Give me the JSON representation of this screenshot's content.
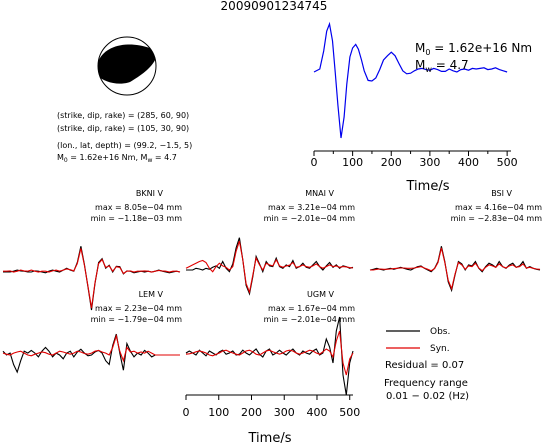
{
  "title": "20090901234745",
  "source_params": {
    "line1": "(strike, dip, rake) = (285, 60, 90)",
    "line2": "(strike, dip, rake) = (105, 30, 90)",
    "line3": "(lon., lat, depth) = (99.2, −1.5, 5)",
    "line4": "M₀ = 1.62e+16 Nm, M_w = 4.7"
  },
  "colors": {
    "obs": "#000000",
    "syn": "#e00000",
    "stf": "#0000ee"
  },
  "chart_data": [
    {
      "type": "line",
      "name": "source-time-function",
      "annotation_m0": "M₀ = 1.62e+16 Nm",
      "annotation_mw": "M_w = 4.7",
      "xlabel": "Time/s",
      "xlim": [
        0,
        510
      ],
      "xticks": [
        0,
        50,
        100,
        150,
        200,
        250,
        300,
        350,
        400,
        450,
        500
      ],
      "x": [
        0,
        15,
        25,
        33,
        40,
        48,
        55,
        62,
        70,
        78,
        85,
        93,
        100,
        108,
        115,
        123,
        130,
        140,
        150,
        160,
        170,
        180,
        190,
        200,
        210,
        220,
        230,
        240,
        250,
        260,
        270,
        280,
        290,
        300,
        310,
        320,
        330,
        340,
        350,
        360,
        370,
        380,
        390,
        400,
        410,
        420,
        430,
        440,
        450,
        460,
        470,
        480,
        490,
        500
      ],
      "y": [
        0.2,
        0.25,
        0.55,
        0.88,
        1.0,
        0.72,
        0.2,
        -0.35,
        -0.9,
        -0.55,
        0.0,
        0.45,
        0.6,
        0.66,
        0.58,
        0.4,
        0.22,
        0.06,
        0.05,
        0.1,
        0.24,
        0.4,
        0.47,
        0.53,
        0.47,
        0.34,
        0.22,
        0.17,
        0.18,
        0.22,
        0.25,
        0.26,
        0.24,
        0.23,
        0.26,
        0.24,
        0.21,
        0.21,
        0.25,
        0.22,
        0.2,
        0.24,
        0.25,
        0.23,
        0.26,
        0.25,
        0.26,
        0.27,
        0.24,
        0.25,
        0.27,
        0.24,
        0.22,
        0.2
      ]
    },
    {
      "type": "line",
      "name": "waveforms",
      "xlabel": "Time/s",
      "xlim": [
        0,
        510
      ],
      "xticks": [
        0,
        100,
        200,
        300,
        400,
        500
      ],
      "legend": {
        "obs": "Obs.",
        "syn": "Syn.",
        "residual": "Residual = 0.07",
        "freq_title": "Frequency range",
        "freq_value": "0.01 − 0.02 (Hz)"
      },
      "stations": [
        {
          "label": "BKNI V",
          "max": "max = 8.05e−04 mm",
          "min": "min = −1.18e−03 mm",
          "obs": [
            0,
            0,
            0,
            0.02,
            0.05,
            0.03,
            0.02,
            0,
            0,
            0.03,
            0.02,
            0,
            -0.02,
            0.02,
            0.05,
            0.02,
            0,
            0.05,
            0.1,
            0.05,
            0.02,
            0.25,
            0.68,
            0.2,
            -0.4,
            -1.0,
            -0.3,
            0.25,
            0.35,
            0.1,
            0.18,
            0.0,
            0.15,
            0.14,
            -0.05,
            0.03,
            0.02,
            -0.02,
            0,
            0.02,
            0,
            0.02,
            0,
            0.02,
            0.05,
            0.02,
            0,
            -0.02,
            0,
            0.02,
            0
          ],
          "syn": [
            0.02,
            0.02,
            0.03,
            0.0,
            0.02,
            0.05,
            0.03,
            0.02,
            0.05,
            0.02,
            0,
            0.02,
            0.02,
            0.0,
            0.03,
            0.05,
            0.02,
            0.05,
            0.08,
            0.06,
            0.03,
            0.22,
            0.62,
            0.18,
            -0.38,
            -0.95,
            -0.28,
            0.22,
            0.33,
            0.12,
            0.16,
            0.02,
            0.14,
            0.12,
            -0.04,
            0.02,
            0.03,
            0,
            0.02,
            0.02,
            0.03,
            0.02,
            0.0,
            0.02,
            0.04,
            0.03,
            0.02,
            0,
            0.02,
            0.02,
            0
          ]
        },
        {
          "label": "MNAI V",
          "max": "max = 3.21e−04 mm",
          "min": "min = −2.01e−04 mm",
          "obs": [
            0,
            0,
            0,
            0.05,
            0.03,
            0,
            0.05,
            0.02,
            0.08,
            0.12,
            0.05,
            0.25,
            0.05,
            -0.05,
            0.18,
            0.65,
            0.95,
            0.3,
            -0.45,
            -0.7,
            -0.2,
            0.4,
            0.18,
            -0.05,
            0.25,
            0.12,
            0.1,
            0.35,
            0.1,
            0.05,
            0.15,
            0.1,
            0.28,
            0.05,
            0.1,
            0.2,
            0.08,
            0.05,
            0.15,
            0.25,
            0.1,
            0.0,
            0.12,
            0.22,
            0.08,
            0.15,
            0.05,
            0.12,
            0.1,
            0.05,
            0.08
          ],
          "syn": [
            0.05,
            0.1,
            0.15,
            0.2,
            0.25,
            0.28,
            0.22,
            0.05,
            -0.05,
            0.1,
            0.2,
            0.12,
            0.08,
            0.0,
            0.1,
            0.55,
            0.85,
            0.3,
            -0.4,
            -0.65,
            -0.15,
            0.35,
            0.15,
            0,
            0.2,
            0.15,
            0.12,
            0.3,
            0.12,
            0.08,
            0.12,
            0.14,
            0.22,
            0.08,
            0.1,
            0.15,
            0.1,
            0.08,
            0.12,
            0.18,
            0.1,
            0.05,
            0.1,
            0.15,
            0.1,
            0.12,
            0.08,
            0.1,
            0.09,
            0.07,
            0.06
          ]
        },
        {
          "label": "BSI V",
          "max": "max = 4.16e−04 mm",
          "min": "min = −2.83e−04 mm",
          "obs": [
            0,
            0.02,
            0.05,
            0.02,
            0,
            0.03,
            0.05,
            0.02,
            0.05,
            0.08,
            0.05,
            0.02,
            0.0,
            0.05,
            0.1,
            0.12,
            0.05,
            0.0,
            -0.05,
            0.05,
            0.25,
            0.7,
            0.25,
            -0.35,
            -0.6,
            -0.15,
            0.25,
            0.18,
            0.0,
            0.15,
            0.12,
            0.25,
            0.05,
            -0.05,
            0.1,
            0.2,
            0.15,
            0.08,
            0.25,
            0.1,
            0.05,
            0.15,
            0.2,
            0.08,
            0.12,
            0.25,
            0.05,
            0.1,
            0.05,
            0.02,
            0
          ],
          "syn": [
            0.0,
            0.0,
            0.02,
            0.03,
            0.02,
            0.02,
            0.03,
            0.04,
            0.05,
            0.06,
            0.06,
            0.05,
            0.05,
            0.06,
            0.08,
            0.1,
            0.06,
            0.02,
            -0.02,
            0.04,
            0.22,
            0.65,
            0.22,
            -0.3,
            -0.55,
            -0.12,
            0.22,
            0.15,
            0.02,
            0.12,
            0.1,
            0.2,
            0.06,
            -0.02,
            0.08,
            0.15,
            0.12,
            0.08,
            0.18,
            0.1,
            0.06,
            0.12,
            0.15,
            0.08,
            0.1,
            0.18,
            0.06,
            0.08,
            0.05,
            0.03,
            0.02
          ]
        },
        {
          "label": "LEM V",
          "max": "max = 2.23e−04 mm",
          "min": "min = −1.79e−04 mm",
          "obs": [
            0.1,
            0.0,
            0.05,
            -0.25,
            -0.45,
            -0.15,
            0.1,
            0.05,
            0.12,
            0.05,
            -0.05,
            0.1,
            0.2,
            0.1,
            -0.05,
            0.05,
            0.0,
            -0.1,
            0.05,
            0.1,
            -0.05,
            0.08,
            0.15,
            0.05,
            -0.02,
            0.0,
            0.08,
            0.12,
            0.05,
            -0.15,
            -0.25,
            0.25,
            0.55,
            0.05,
            -0.4,
            0.3,
            0.1,
            -0.05,
            0.05,
            0.0,
            0.12,
            0.05,
            -0.05,
            0.0,
            0.0,
            0.0,
            0.0,
            0.0,
            0.0,
            0.0,
            0.0
          ],
          "syn": [
            0.05,
            0.02,
            0.0,
            0.05,
            0.08,
            0.1,
            0.05,
            0.0,
            -0.02,
            0.02,
            0.05,
            0.08,
            0.06,
            0.02,
            0.0,
            0.05,
            0.1,
            0.08,
            0.05,
            0.02,
            0.05,
            0.1,
            0.08,
            0.04,
            0.02,
            0.05,
            0.1,
            0.12,
            0.08,
            0.05,
            0.0,
            0.2,
            0.5,
            0.1,
            -0.15,
            0.2,
            0.08,
            0.1,
            0.05,
            0.08,
            0.05,
            0.1,
            0.05,
            0.0,
            0.0,
            0.0,
            0.0,
            0.0,
            0.0,
            0.0,
            0.0
          ]
        },
        {
          "label": "UGM V",
          "max": "max = 1.67e−04 mm",
          "min": "min = −2.01e−04 mm",
          "obs": [
            0.05,
            0.1,
            0.05,
            0.0,
            0.12,
            0.05,
            -0.02,
            0.1,
            0.05,
            0.0,
            0.08,
            0.12,
            0.02,
            0.05,
            0.1,
            0.0,
            0.02,
            0.12,
            0.05,
            0.0,
            0.08,
            0.15,
            0.02,
            -0.05,
            0.1,
            0.15,
            0.0,
            0.05,
            0.12,
            0.05,
            0.0,
            0.08,
            0.15,
            0.05,
            0.0,
            0.1,
            0.05,
            0.02,
            0.1,
            0.15,
            0.0,
            0.05,
            0.4,
            0.2,
            -0.2,
            0.6,
            0.95,
            -0.5,
            -1.0,
            -0.2,
            0.1
          ],
          "syn": [
            0.02,
            0.03,
            0.05,
            0.08,
            0.1,
            0.08,
            0.05,
            0.0,
            -0.02,
            0.02,
            0.05,
            0.1,
            0.12,
            0.08,
            0.05,
            0.02,
            0.0,
            0.05,
            0.1,
            0.12,
            0.08,
            0.02,
            0.0,
            0.05,
            0.1,
            0.12,
            0.08,
            0.05,
            0.02,
            0.05,
            0.1,
            0.12,
            0.1,
            0.05,
            0.02,
            0.05,
            0.08,
            0.12,
            0.1,
            0.05,
            0.02,
            0.08,
            0.15,
            0.1,
            -0.05,
            0.35,
            0.6,
            -0.2,
            -0.5,
            -0.1,
            0.05
          ]
        }
      ]
    }
  ]
}
